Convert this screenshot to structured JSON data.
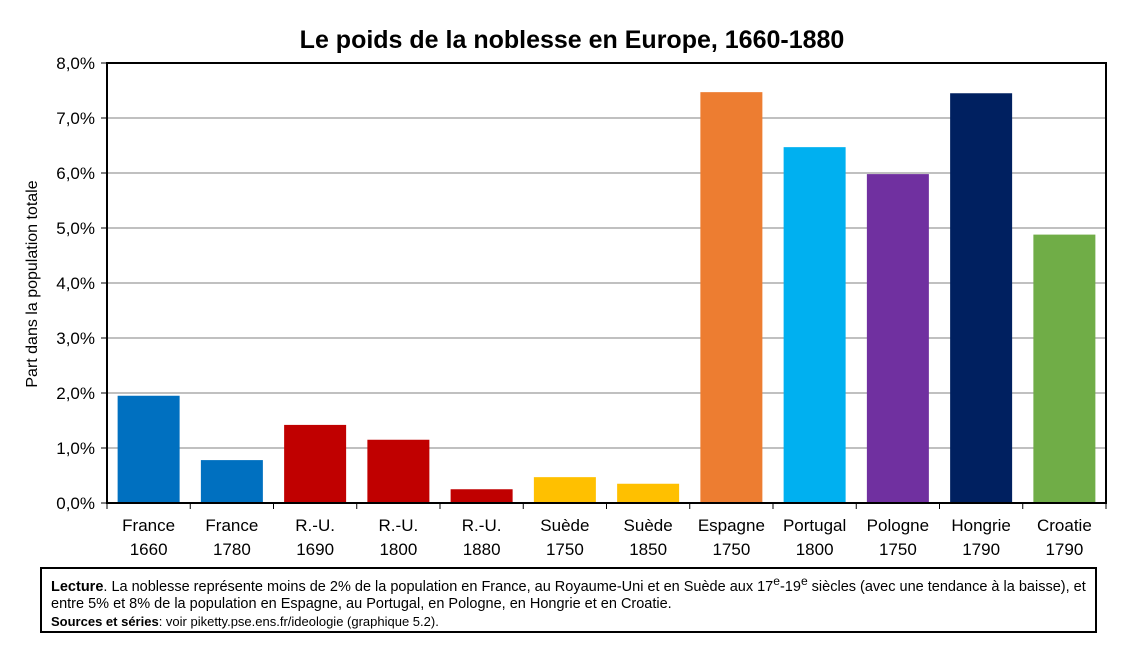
{
  "chart_data": {
    "type": "bar",
    "title": "Le poids de la noblesse en Europe, 1660-1880",
    "ylabel": "Part dans la population totale",
    "xlabel": "",
    "ylim": [
      0,
      8
    ],
    "y_tick_labels": [
      "0,0%",
      "1,0%",
      "2,0%",
      "3,0%",
      "4,0%",
      "5,0%",
      "6,0%",
      "7,0%",
      "8,0%"
    ],
    "grid": true,
    "categories": [
      [
        "France",
        "1660"
      ],
      [
        "France",
        "1780"
      ],
      [
        "R.-U.",
        "1690"
      ],
      [
        "R.-U.",
        "1800"
      ],
      [
        "R.-U.",
        "1880"
      ],
      [
        "Suède",
        "1750"
      ],
      [
        "Suède",
        "1850"
      ],
      [
        "Espagne",
        "1750"
      ],
      [
        "Portugal",
        "1800"
      ],
      [
        "Pologne",
        "1750"
      ],
      [
        "Hongrie",
        "1790"
      ],
      [
        "Croatie",
        "1790"
      ]
    ],
    "values": [
      1.95,
      0.78,
      1.42,
      1.15,
      0.25,
      0.47,
      0.35,
      7.47,
      6.47,
      5.98,
      7.45,
      4.88
    ],
    "colors": [
      "#0070c0",
      "#0070c0",
      "#c00000",
      "#c00000",
      "#c00000",
      "#ffc000",
      "#ffc000",
      "#ed7d31",
      "#00b0f0",
      "#7030a0",
      "#002060",
      "#70ad47"
    ]
  },
  "note": {
    "lecture_label": "Lecture",
    "lecture_text": ". La noblesse représente moins de 2% de la population en France, au Royaume-Uni et en Suède aux 17",
    "sup1": "e",
    "dash": "-19",
    "sup2": "e",
    "lecture_tail": " siècles (avec une tendance à la baisse), et entre 5% et 8% de la population en Espagne, au Portugal, en Pologne, en Hongrie et en Croatie.",
    "sources_label": "Sources et séries",
    "sources_text": ": voir piketty.pse.ens.fr/ideologie (graphique 5.2)."
  }
}
